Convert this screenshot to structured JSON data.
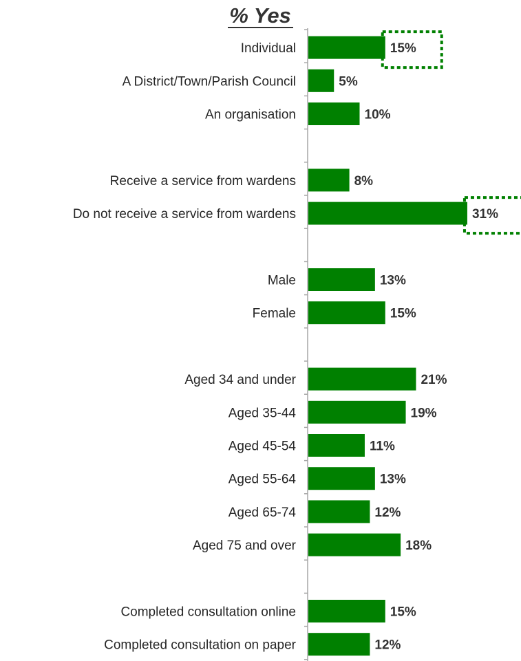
{
  "chart_data": {
    "type": "bar",
    "orientation": "horizontal",
    "title": "% Yes",
    "xlabel": "",
    "ylabel": "",
    "xlim": [
      0,
      32
    ],
    "grid": false,
    "legend": "none",
    "bar_color": "#008000",
    "highlight_color": "#008000",
    "categories": [
      "Individual",
      "A District/Town/Parish Council",
      "An organisation",
      "",
      "Receive a service from wardens",
      "Do not receive a service from wardens",
      "",
      "Male",
      "Female",
      "",
      "Aged 34 and under",
      "Aged 35-44",
      "Aged 45-54",
      "Aged 55-64",
      "Aged 65-74",
      "Aged 75 and over",
      "",
      "Completed consultation online",
      "Completed consultation on paper"
    ],
    "values": [
      15,
      5,
      10,
      null,
      8,
      31,
      null,
      13,
      15,
      null,
      21,
      19,
      11,
      13,
      12,
      18,
      null,
      15,
      12
    ],
    "value_labels": [
      "15%",
      "5%",
      "10%",
      "",
      "8%",
      "31%",
      "",
      "13%",
      "15%",
      "",
      "21%",
      "19%",
      "11%",
      "13%",
      "12%",
      "18%",
      "",
      "15%",
      "12%"
    ],
    "highlighted": [
      "Individual",
      "Do not receive a service from wardens"
    ]
  }
}
